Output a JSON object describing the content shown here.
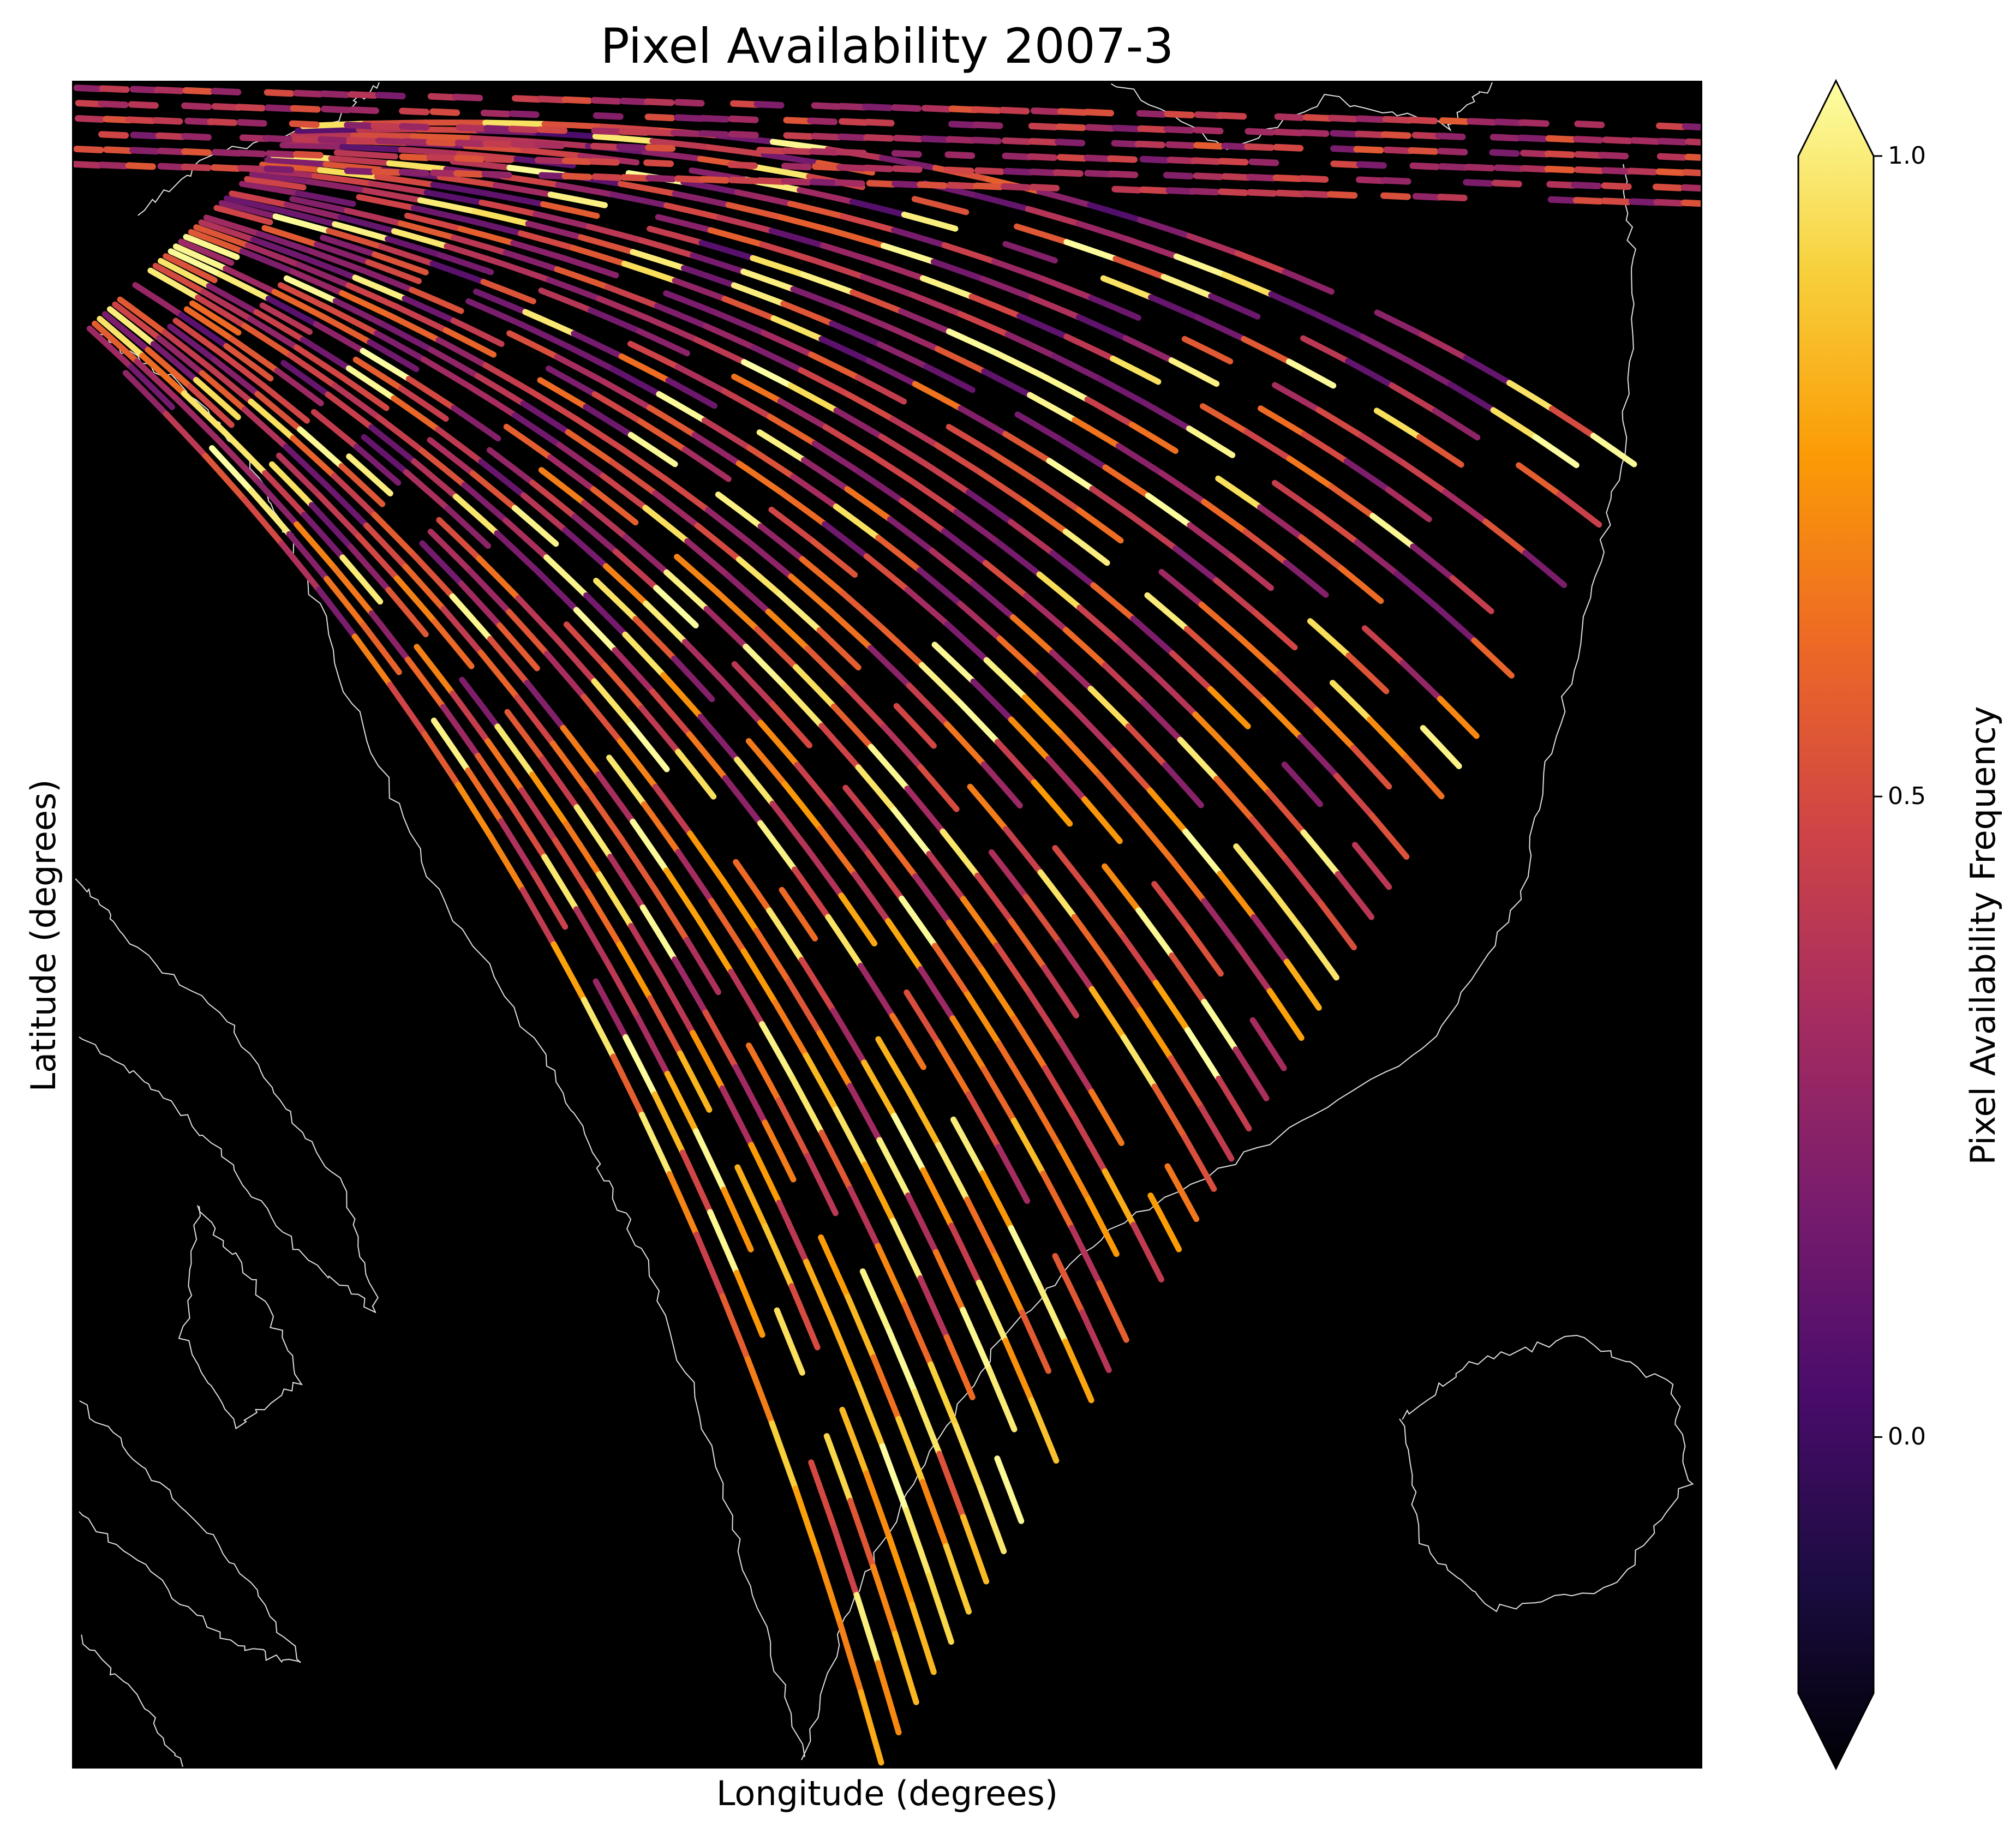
{
  "chart_data": {
    "type": "heatmap",
    "title": "Pixel Availability 2007-3",
    "xlabel": "Longitude (degrees)",
    "ylabel": "Latitude (degrees)",
    "colorbar": {
      "label": "Pixel Availability Frequency",
      "ticks": [
        {
          "value": 1.0,
          "label": "1.0"
        },
        {
          "value": 0.5,
          "label": "0.5"
        },
        {
          "value": 0.0,
          "label": "0.0"
        }
      ],
      "range": [
        -0.2,
        1.0
      ],
      "extend": "both",
      "colormap": "inferno",
      "colors": [
        "#000004",
        "#1b0c41",
        "#4a0c6b",
        "#781c6d",
        "#a52c60",
        "#cf4446",
        "#ed6925",
        "#fb9b06",
        "#f7d13d",
        "#fcffa4"
      ]
    },
    "background_color": "#000000",
    "coastline_color": "#e0e0e0",
    "x_ticks_visible": false,
    "y_ticks_visible": false
  }
}
